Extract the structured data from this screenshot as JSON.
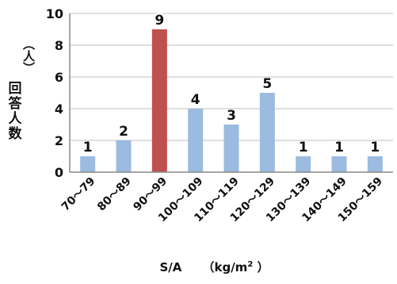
{
  "chart_data": {
    "type": "bar",
    "categories": [
      "70～79",
      "80～89",
      "90～99",
      "100～109",
      "110～119",
      "120～129",
      "130～139",
      "140～149",
      "150～159"
    ],
    "values": [
      1,
      2,
      9,
      4,
      3,
      5,
      1,
      1,
      1
    ],
    "highlight_index": 2,
    "colors": {
      "bar": "#9bbbe0",
      "highlight": "#c0504d",
      "grid": "#bfbfbf",
      "axis": "#888888"
    },
    "ylim": [
      0,
      10
    ],
    "yticks": [
      0,
      2,
      4,
      6,
      8,
      10
    ],
    "grid": true,
    "ylabel": "回答人数",
    "yunit": "（人）",
    "xlabel_main": "S/A",
    "xlabel_unit_open": "（kg/m",
    "xlabel_unit_sup": "2",
    "xlabel_unit_close": "）"
  }
}
